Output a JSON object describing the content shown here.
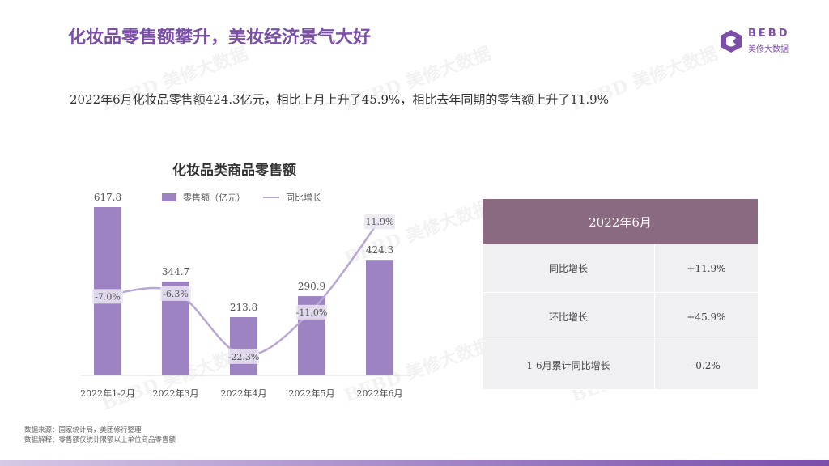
{
  "header": {
    "title": "化妆品零售额攀升，美妆经济景气大好",
    "logo_en": "BEBD",
    "logo_cn": "美修大数据"
  },
  "subtitle": "2022年6月化妆品零售额424.3亿元，相比上月上升了45.9%，相比去年同期的零售额上升了11.9%",
  "chart_data": {
    "type": "bar",
    "title": "化妆品类商品零售额",
    "categories": [
      "2022年1-2月",
      "2022年3月",
      "2022年4月",
      "2022年5月",
      "2022年6月"
    ],
    "series": [
      {
        "name": "零售额（亿元）",
        "type": "bar",
        "values": [
          617.8,
          344.7,
          213.8,
          290.9,
          424.3
        ],
        "labels": [
          "617.8",
          "344.7",
          "213.8",
          "290.9",
          "424.3"
        ]
      },
      {
        "name": "同比增长",
        "type": "line",
        "values": [
          -7.0,
          -6.3,
          -22.3,
          -11.0,
          11.9
        ],
        "labels": [
          "-7.0%",
          "-6.3%",
          "-22.3%",
          "-11.0%",
          "11.9%"
        ]
      }
    ],
    "bar_color": "#9d83c1",
    "line_color": "#b8a7d4"
  },
  "table": {
    "header": "2022年6月",
    "rows": [
      {
        "label": "同比增长",
        "value": "+11.9%"
      },
      {
        "label": "环比增长",
        "value": "+45.9%"
      },
      {
        "label": "1-6月累计同比增长",
        "value": "-0.2%"
      }
    ]
  },
  "footnote": {
    "source": "数据来源：国家统计局，美团修行整理",
    "note": "数据解释：零售额仅统计限额以上单位商品零售额"
  },
  "watermark": "BEBD 美修大数据",
  "colors": {
    "accent": "#7b4fa8",
    "table_header": "#8a6a80",
    "table_body": "#f0eff2"
  }
}
